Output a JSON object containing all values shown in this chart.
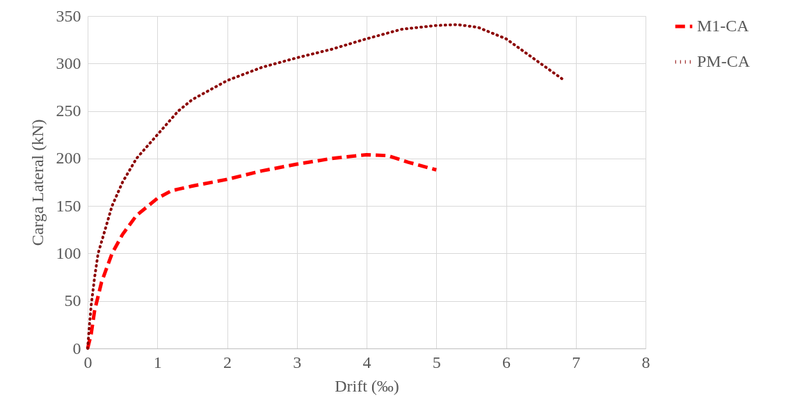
{
  "chart_data": {
    "type": "line",
    "xlabel": "Drift (‰)",
    "ylabel": "Carga Lateral  (kN)",
    "xlim": [
      0,
      8
    ],
    "xticks": [
      0,
      1,
      2,
      3,
      4,
      5,
      6,
      7,
      8
    ],
    "ylim": [
      0,
      350
    ],
    "yticks": [
      0,
      50,
      100,
      150,
      200,
      250,
      300,
      350
    ],
    "grid": true,
    "legend": "right",
    "marker": "none",
    "series": [
      {
        "name": "M1-CA",
        "color": "#ff0000",
        "line_style": "dashed",
        "x": [
          0,
          0.05,
          0.1,
          0.2,
          0.35,
          0.5,
          0.7,
          1,
          1.2,
          1.5,
          2,
          2.5,
          3,
          3.5,
          4,
          4.3,
          4.6,
          5
        ],
        "values": [
          0,
          15,
          40,
          70,
          100,
          120,
          140,
          158,
          166,
          171,
          178,
          187,
          194,
          200,
          204,
          203,
          196,
          188
        ]
      },
      {
        "name": "PM-CA",
        "color": "#8b0000",
        "line_style": "dotted",
        "x": [
          0,
          0.02,
          0.05,
          0.1,
          0.15,
          0.25,
          0.35,
          0.5,
          0.7,
          1,
          1.3,
          1.5,
          2,
          2.5,
          3,
          3.5,
          4,
          4.5,
          5,
          5.3,
          5.6,
          6,
          6.4,
          6.8
        ],
        "values": [
          0,
          20,
          45,
          75,
          100,
          125,
          150,
          175,
          200,
          225,
          250,
          262,
          282,
          296,
          306,
          315,
          326,
          336,
          340,
          341,
          338,
          326,
          305,
          284
        ]
      }
    ]
  }
}
